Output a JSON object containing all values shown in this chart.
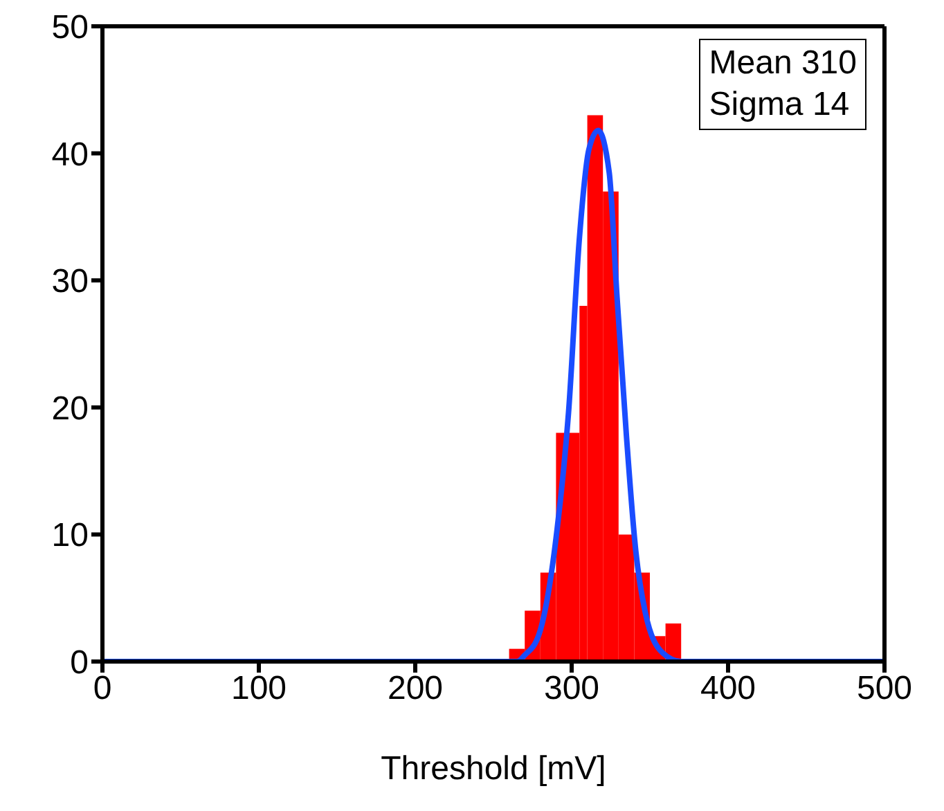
{
  "chart_data": {
    "type": "histogram",
    "xlabel": "Threshold [mV]",
    "bins": [
      260,
      270,
      280,
      290,
      305,
      310,
      320,
      330,
      340,
      350,
      360,
      370
    ],
    "values": [
      1,
      4,
      7,
      18,
      28,
      43,
      37,
      10,
      7,
      2,
      3
    ],
    "color": "#ff0000",
    "series": [
      {
        "type": "line",
        "color": "#1a4cff",
        "x": [
          0,
          265,
          270,
          279,
          290,
          298,
          305,
          311,
          317,
          324,
          329,
          335,
          341,
          347,
          358,
          370,
          500
        ],
        "values": [
          0,
          0,
          0.5,
          2.1,
          9.7,
          19.6,
          33.4,
          40.3,
          41.8,
          38.5,
          28.7,
          17.8,
          8.7,
          3.9,
          0.7,
          0,
          0
        ]
      }
    ],
    "xlim": [
      0,
      500
    ],
    "xticks": [
      0,
      100,
      200,
      300,
      400,
      500
    ],
    "ylim": [
      0,
      50
    ],
    "yticks": [
      0,
      10,
      20,
      30,
      40,
      50
    ],
    "annotations": [
      "Mean 310",
      "Sigma 14"
    ]
  }
}
